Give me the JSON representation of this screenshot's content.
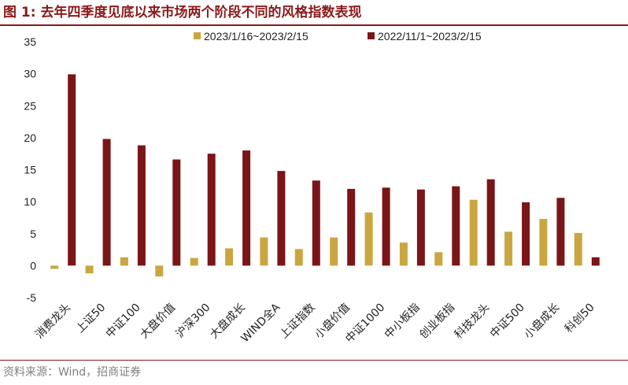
{
  "figure": {
    "title": "图 1:  去年四季度见底以来市场两个阶段不同的风格指数表现",
    "source": "资料来源：Wind，招商证券"
  },
  "colors": {
    "series1": "#c9a640",
    "series2": "#7b1517",
    "accent": "#8b1a1a"
  },
  "chart_data": {
    "type": "bar",
    "categories": [
      "消费龙头",
      "上证50",
      "中证100",
      "大盘价值",
      "沪深300",
      "大盘成长",
      "WIND全A",
      "上证指数",
      "小盘价值",
      "中证1000",
      "中小板指",
      "创业板指",
      "科技龙头",
      "中证500",
      "小盘成长",
      "科创50"
    ],
    "series": [
      {
        "name": "2023/1/16~2023/2/15",
        "values": [
          -0.5,
          -1.2,
          1.3,
          -1.7,
          1.2,
          2.7,
          4.4,
          2.6,
          4.4,
          8.3,
          3.6,
          2.1,
          10.3,
          5.3,
          7.3,
          5.1
        ]
      },
      {
        "name": "2022/11/1~2023/2/15",
        "values": [
          29.9,
          19.8,
          18.8,
          16.6,
          17.5,
          18.0,
          14.8,
          13.3,
          12.0,
          12.2,
          11.9,
          12.4,
          13.5,
          9.9,
          10.6,
          1.3
        ]
      }
    ],
    "ylim": [
      -5,
      35
    ],
    "yticks": [
      -5,
      0,
      5,
      10,
      15,
      20,
      25,
      30,
      35
    ],
    "xlabel": "",
    "ylabel": "",
    "grid": false,
    "legend": "top"
  }
}
